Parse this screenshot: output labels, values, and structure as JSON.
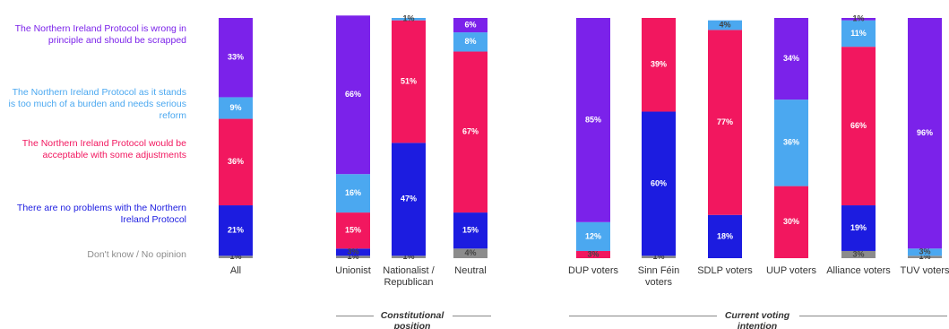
{
  "chart_data": {
    "type": "stacked_bar",
    "categories": [
      "All",
      "Unionist",
      "Nationalist / Republican",
      "Neutral",
      "DUP voters",
      "Sinn Féin voters",
      "SDLP voters",
      "UUP voters",
      "Alliance voters",
      "TUV voters"
    ],
    "ylim": [
      0,
      100
    ],
    "series": [
      {
        "name": "Don't know / No opinion",
        "color": "#8c8c8c",
        "values": [
          1,
          1,
          1,
          4,
          null,
          1,
          null,
          null,
          3,
          1
        ],
        "value_labels": [
          "1%",
          "1%",
          "1%",
          "4%",
          null,
          "1%",
          null,
          null,
          "3%",
          "1%"
        ]
      },
      {
        "name": "There are no problems with the Northern Ireland Protocol",
        "color": "#1c1ce0",
        "values": [
          21,
          3,
          47,
          15,
          null,
          60,
          18,
          null,
          19,
          null
        ],
        "value_labels": [
          "21%",
          "3%",
          "47%",
          "15%",
          null,
          "60%",
          "18%",
          null,
          "19%",
          null
        ]
      },
      {
        "name": "The Northern Ireland Protocol would be acceptable with some adjustments",
        "color": "#f2175f",
        "values": [
          36,
          15,
          51,
          67,
          3,
          39,
          77,
          30,
          66,
          null
        ],
        "value_labels": [
          "36%",
          "15%",
          "51%",
          "67%",
          "3%",
          "39%",
          "77%",
          "30%",
          "66%",
          null
        ]
      },
      {
        "name": "The Northern Ireland Protocol as it stands is too much of a burden and needs serious reform",
        "color": "#4ba8f0",
        "values": [
          9,
          16,
          1,
          8,
          12,
          null,
          4,
          36,
          11,
          3
        ],
        "value_labels": [
          "9%",
          "16%",
          "1%",
          "8%",
          "12%",
          null,
          "4%",
          "36%",
          "11%",
          "3%"
        ]
      },
      {
        "name": "The Northern Ireland Protocol is wrong in principle and should be scrapped",
        "color": "#7b22ea",
        "values": [
          33,
          66,
          null,
          6,
          85,
          null,
          null,
          34,
          1,
          96
        ],
        "value_labels": [
          "33%",
          "66%",
          null,
          "6%",
          "85%",
          null,
          null,
          "34%",
          "1%",
          "96%"
        ]
      }
    ],
    "groups": [
      "Constitutional position",
      "Current voting intention"
    ]
  }
}
